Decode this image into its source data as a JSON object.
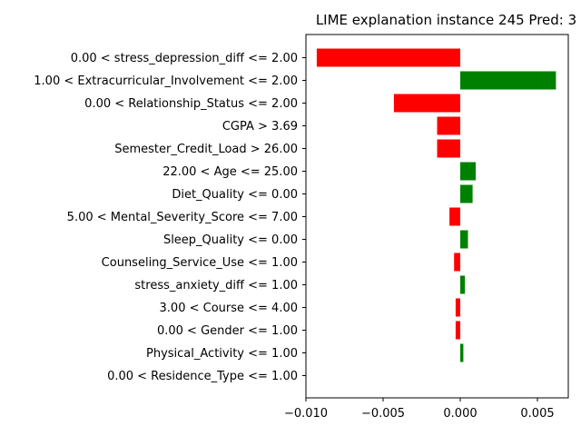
{
  "chart_data": {
    "type": "bar",
    "orientation": "horizontal",
    "title": "LIME explanation instance 245 Pred: 3",
    "xlabel": "",
    "ylabel": "",
    "xlim": [
      -0.01,
      0.007
    ],
    "xticks": [
      -0.01,
      -0.005,
      0.0,
      0.005
    ],
    "xtick_labels": [
      "−0.010",
      "−0.005",
      "0.000",
      "0.005"
    ],
    "grid": false,
    "categories": [
      "0.00 < stress_depression_diff <= 2.00",
      "1.00 < Extracurricular_Involvement <= 2.00",
      "0.00 < Relationship_Status <= 2.00",
      "CGPA > 3.69",
      "Semester_Credit_Load > 26.00",
      "22.00 < Age <= 25.00",
      "Diet_Quality <= 0.00",
      "5.00 < Mental_Severity_Score <= 7.00",
      "Sleep_Quality <= 0.00",
      "Counseling_Service_Use <= 1.00",
      "stress_anxiety_diff <= 1.00",
      "3.00 < Course <= 4.00",
      "0.00 < Gender <= 1.00",
      "Physical_Activity <= 1.00",
      "0.00 < Residence_Type <= 1.00"
    ],
    "values": [
      -0.0093,
      0.0062,
      -0.0043,
      -0.0015,
      -0.0015,
      0.001,
      0.0008,
      -0.0007,
      0.0005,
      -0.0004,
      0.0003,
      -0.0003,
      -0.0003,
      0.0002,
      0.0
    ],
    "colors": {
      "positive": "#008000",
      "negative": "#ff0000"
    }
  }
}
